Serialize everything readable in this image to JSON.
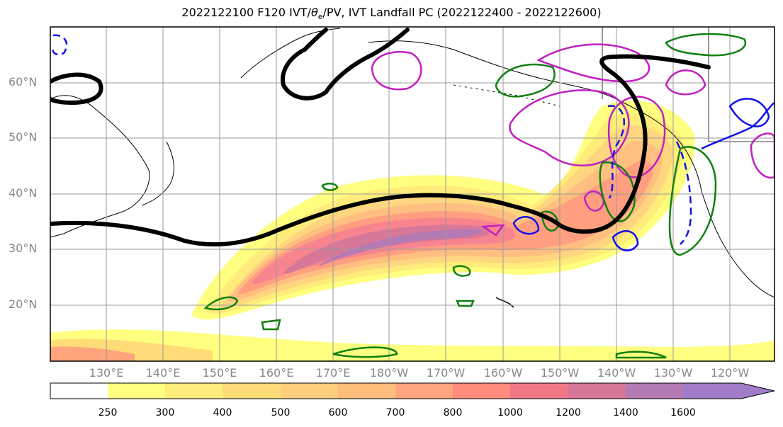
{
  "title_prefix": "2022122100 F120 IVT/",
  "title_theta": "θ",
  "title_sub": "e",
  "title_suffix": "/PV, IVT Landfall PC (2022122400 - 2022122600)",
  "lat_labels": [
    "60°N",
    "50°N",
    "40°N",
    "30°N",
    "20°N"
  ],
  "lon_labels": [
    "130°E",
    "140°E",
    "150°E",
    "160°E",
    "170°E",
    "180°W",
    "170°W",
    "160°W",
    "150°W",
    "140°W",
    "130°W",
    "120°W"
  ],
  "colorbar": {
    "levels": [
      "250",
      "300",
      "400",
      "500",
      "600",
      "700",
      "800",
      "1000",
      "1200",
      "1400",
      "1600"
    ],
    "colors": [
      "#ffffff",
      "#ffff80",
      "#ffec7a",
      "#ffdc78",
      "#ffce7c",
      "#ffbd7c",
      "#ffa47c",
      "#ff8c7c",
      "#f07886",
      "#d87898",
      "#b47ab4",
      "#a07cc8"
    ],
    "extend": "max"
  },
  "legend_colors": {
    "thick_contour": "#000000",
    "magenta": "#c020c0",
    "green": "#108010",
    "blue": "#1010ee"
  }
}
